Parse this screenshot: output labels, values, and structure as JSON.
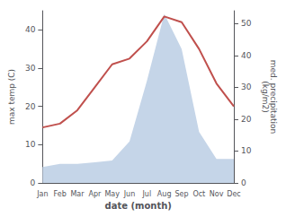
{
  "chart_data": {
    "type": "line",
    "categories": [
      "Jan",
      "Feb",
      "Mar",
      "Apr",
      "May",
      "Jun",
      "Jul",
      "Aug",
      "Sep",
      "Oct",
      "Nov",
      "Dec"
    ],
    "xlabel": "date (month)",
    "ylabel": "max temp (C)",
    "y2label": "med. precipitation\n(kg/m2)",
    "ylim": [
      0,
      45
    ],
    "yticks": [
      0,
      10,
      20,
      30,
      40
    ],
    "y2lim": [
      0,
      54
    ],
    "y2ticks": [
      0,
      10,
      20,
      30,
      40,
      50
    ],
    "grid": false,
    "series": [
      {
        "type": "area",
        "color": "#c5d5e8",
        "axis": "y2",
        "values": [
          5.0,
          6.0,
          6.0,
          6.5,
          7.0,
          13.0,
          32.0,
          53.0,
          42.0,
          16.0,
          7.5,
          7.5
        ]
      },
      {
        "type": "line",
        "color": "#c0504d",
        "values": [
          14.5,
          15.5,
          19.0,
          25.0,
          31.0,
          32.5,
          37.0,
          43.5,
          42.0,
          35.0,
          26.0,
          20.0
        ]
      }
    ]
  }
}
